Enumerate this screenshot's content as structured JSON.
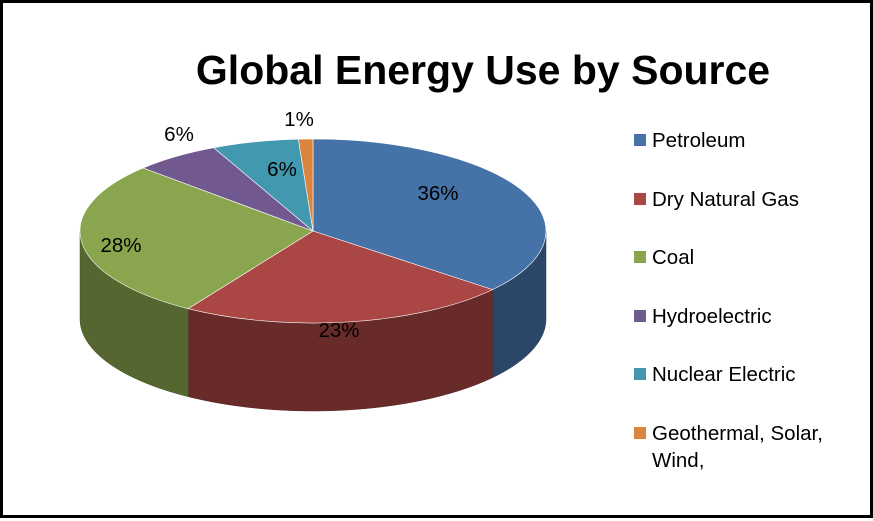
{
  "chart_data": {
    "type": "pie",
    "title": "Global Energy Use by Source",
    "slices": [
      {
        "name": "Petroleum",
        "value": 36,
        "label": "36%",
        "color": "#4572A7"
      },
      {
        "name": "Dry Natural Gas",
        "value": 23,
        "label": "23%",
        "color": "#AA4643"
      },
      {
        "name": "Coal",
        "value": 28,
        "label": "28%",
        "color": "#89A54E"
      },
      {
        "name": "Hydroelectric",
        "value": 6,
        "label": "6%",
        "color": "#71588F"
      },
      {
        "name": "Nuclear Electric",
        "value": 6,
        "label": "6%",
        "color": "#4198AF"
      },
      {
        "name": "Geothermal, Solar,\nWind,",
        "value": 1,
        "label": "1%",
        "color": "#DB843D"
      }
    ],
    "legend_position": "right",
    "style": "3d"
  }
}
